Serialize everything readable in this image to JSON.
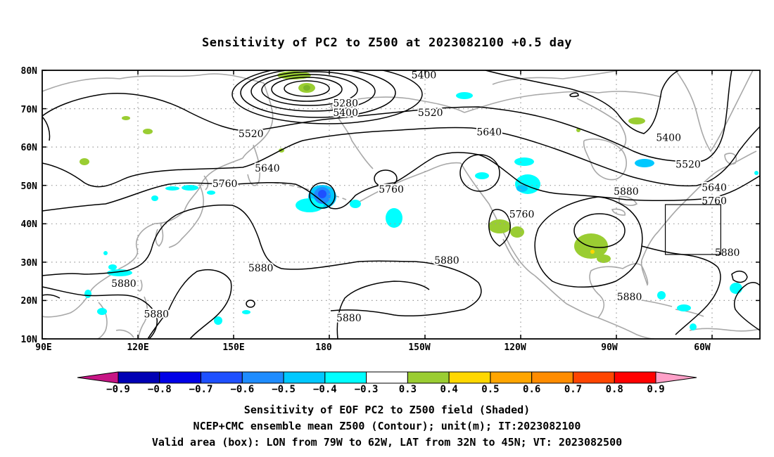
{
  "title": "Sensitivity of PC2 to Z500 at 2023082100 +0.5 day",
  "map": {
    "lat_labels": [
      "80N",
      "70N",
      "60N",
      "50N",
      "40N",
      "30N",
      "20N",
      "10N"
    ],
    "lon_labels": [
      "90E",
      "120E",
      "150E",
      "180",
      "150W",
      "120W",
      "90W",
      "60W"
    ],
    "contour_labels": [
      {
        "text": "5400",
        "lon": -153,
        "lat": 78.8
      },
      {
        "text": "5280",
        "lon": -177,
        "lat": 71.5
      },
      {
        "text": "5400",
        "lon": -177,
        "lat": 69.0
      },
      {
        "text": "5520",
        "lon": -151,
        "lat": 69.0
      },
      {
        "text": "5520",
        "lon": 154,
        "lat": 63.5
      },
      {
        "text": "5640",
        "lon": -133,
        "lat": 64.0
      },
      {
        "text": "5400",
        "lon": -78,
        "lat": 62.5
      },
      {
        "text": "5640",
        "lon": 159,
        "lat": 54.5
      },
      {
        "text": "5520",
        "lon": -72,
        "lat": 55.5
      },
      {
        "text": "5760",
        "lon": 146,
        "lat": 50.5
      },
      {
        "text": "5760",
        "lon": -163,
        "lat": 49.0
      },
      {
        "text": "5880",
        "lon": -91,
        "lat": 48.5
      },
      {
        "text": "5640",
        "lon": -64,
        "lat": 49.5
      },
      {
        "text": "5760",
        "lon": -64,
        "lat": 46.0
      },
      {
        "text": "5760",
        "lon": -123,
        "lat": 42.5
      },
      {
        "text": "5880",
        "lon": -60,
        "lat": 32.5
      },
      {
        "text": "5880",
        "lon": -146,
        "lat": 30.5
      },
      {
        "text": "5880",
        "lon": 157,
        "lat": 28.5
      },
      {
        "text": "5880",
        "lon": 115,
        "lat": 24.5
      },
      {
        "text": "5880",
        "lon": -90,
        "lat": 21.0
      },
      {
        "text": "5880",
        "lon": 125,
        "lat": 16.5
      },
      {
        "text": "5880",
        "lon": -176,
        "lat": 15.5
      }
    ],
    "valid_box": {
      "lon_min": -79,
      "lon_max": -62,
      "lat_min": 32,
      "lat_max": 45
    }
  },
  "colorbar": {
    "colors": [
      "#c71585",
      "#0000b4",
      "#0000e6",
      "#1e50ff",
      "#1e8cff",
      "#00c8ff",
      "#00ffff",
      "#ffffff",
      "#9acd32",
      "#ffd700",
      "#ffa500",
      "#ff8c00",
      "#ff4500",
      "#ff0000",
      "#ffa0c8"
    ],
    "labels": [
      "−0.9",
      "−0.8",
      "−0.7",
      "−0.6",
      "−0.5",
      "−0.4",
      "−0.3",
      "0.3",
      "0.4",
      "0.5",
      "0.6",
      "0.7",
      "0.8",
      "0.9"
    ]
  },
  "captions": [
    "Sensitivity of EOF PC2 to Z500 field (Shaded)",
    "NCEP+CMC ensemble mean Z500 (Contour); unit(m); IT:2023082100",
    "Valid area (box): LON from 79W to 62W, LAT from 32N to 45N; VT: 2023082500"
  ]
}
